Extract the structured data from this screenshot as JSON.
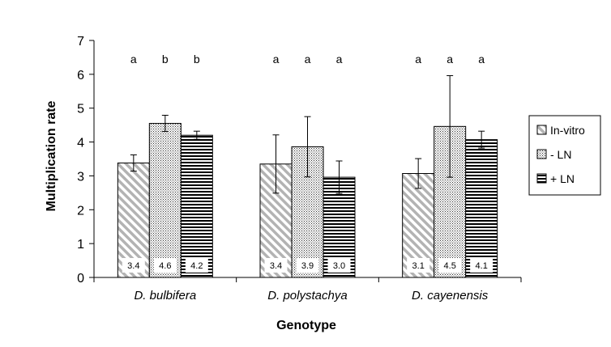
{
  "chart_data": {
    "type": "bar",
    "title": "",
    "xlabel": "Genotype",
    "ylabel": "Multiplication rate",
    "ylim": [
      0,
      7
    ],
    "yticks": [
      "0",
      "1",
      "2",
      "3",
      "4",
      "5",
      "6",
      "7"
    ],
    "grid": false,
    "legend_position": "right",
    "categories": [
      "D. bulbifera",
      "D. polystachya",
      "D. cayenensis"
    ],
    "series": [
      {
        "name": "In-vitro",
        "fill": "diagonal-hatch",
        "values": [
          3.38,
          3.35,
          3.07
        ],
        "errors": [
          0.24,
          0.86,
          0.44
        ],
        "labels": [
          "3.4",
          "3.4",
          "3.1"
        ],
        "significance": [
          "a",
          "a",
          "a"
        ]
      },
      {
        "name": "- LN",
        "fill": "dotted",
        "values": [
          4.55,
          3.86,
          4.46
        ],
        "errors": [
          0.24,
          0.89,
          1.5
        ],
        "labels": [
          "4.6",
          "3.9",
          "4.5"
        ],
        "significance": [
          "b",
          "a",
          "a"
        ]
      },
      {
        "name": "+ LN",
        "fill": "horizontal-stripes",
        "values": [
          4.2,
          2.96,
          4.07
        ],
        "errors": [
          0.12,
          0.48,
          0.25
        ],
        "labels": [
          "4.2",
          "3.0",
          "4.1"
        ],
        "significance": [
          "b",
          "a",
          "a"
        ]
      }
    ]
  }
}
